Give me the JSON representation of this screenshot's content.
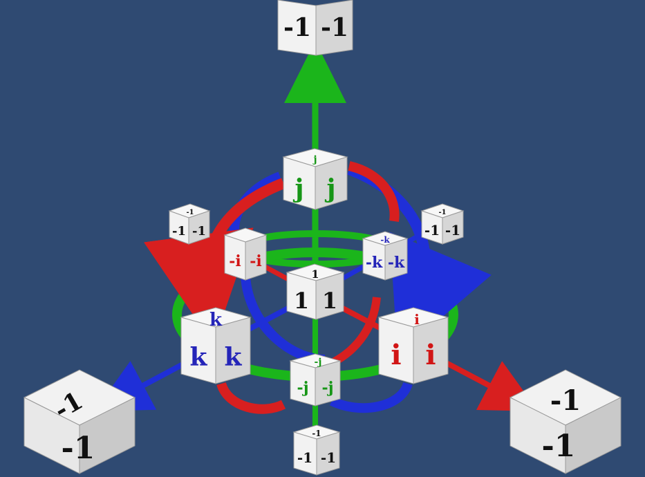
{
  "colors": {
    "background": "#2f4a72",
    "axis_red": "#d81f1f",
    "axis_green": "#1bb51b",
    "axis_blue": "#1f2fd8",
    "cube_face": "#f2f2f2",
    "cube_side": "#c9c9c9",
    "text_black": "#111111",
    "text_red": "#d11515",
    "text_green": "#179617",
    "text_blue": "#2424b8"
  },
  "cubes": {
    "top_minus_one": {
      "front": "-1",
      "side": "-1",
      "top": ""
    },
    "j_cube": {
      "front": "j",
      "side": "j",
      "top": "j"
    },
    "one_cube": {
      "front": "1",
      "side": "1",
      "top": "1"
    },
    "i_cube": {
      "front": "i",
      "side": "i",
      "top": "i"
    },
    "k_cube": {
      "front": "k",
      "side": "k",
      "top": "k"
    },
    "minus_i_cube": {
      "front": "-i",
      "side": "-i",
      "top": ""
    },
    "minus_k_cube": {
      "front": "-k",
      "side": "-k",
      "top": "-k"
    },
    "minus_j_cube": {
      "front": "-j",
      "side": "-j",
      "top": "-j"
    },
    "upper_left_minus_one": {
      "front": "-1",
      "side": "-1",
      "top": "-1"
    },
    "upper_right_minus_one": {
      "front": "-1",
      "side": "-1",
      "top": "-1"
    },
    "bottom_minus_one": {
      "front": "-1",
      "side": "-1",
      "top": "-1"
    },
    "left_minus_one": {
      "front": "-1",
      "side": "-1",
      "top": ""
    },
    "right_minus_one": {
      "front": "-1",
      "side": "-1",
      "top": ""
    }
  }
}
